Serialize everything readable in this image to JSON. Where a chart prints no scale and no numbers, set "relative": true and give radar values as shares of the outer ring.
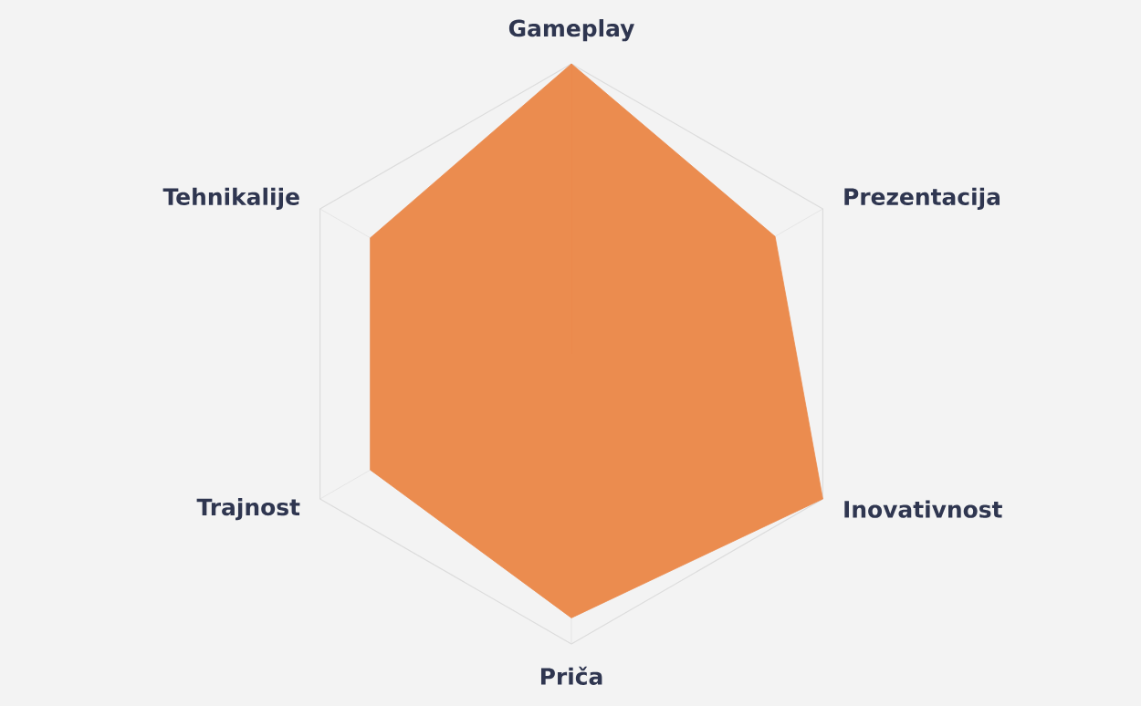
{
  "chart_data": {
    "type": "radar",
    "relative": true,
    "grid": true,
    "categories": [
      "Gameplay",
      "Prezentacija",
      "Inovativnost",
      "Priča",
      "Trajnost",
      "Tehnikalije"
    ],
    "series": [
      {
        "color": "#eb8c4f",
        "values": [
          1.0,
          0.81,
          1.0,
          0.91,
          0.8,
          0.8
        ]
      }
    ]
  }
}
